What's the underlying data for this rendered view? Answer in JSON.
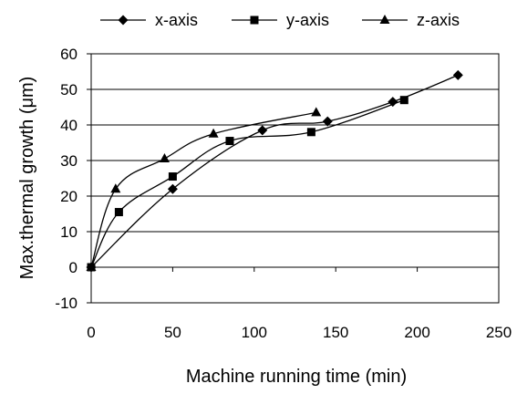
{
  "chart_data": {
    "type": "line",
    "xlabel": "Machine running time (min)",
    "ylabel": "Max.thermal growth (μm)",
    "xlim": [
      0,
      250
    ],
    "ylim": [
      -10,
      60
    ],
    "xticks": [
      0,
      50,
      100,
      150,
      200,
      250
    ],
    "yticks": [
      -10,
      0,
      10,
      20,
      30,
      40,
      50,
      60
    ],
    "grid": "horizontal",
    "legend_position": "top",
    "series": [
      {
        "name": "x-axis",
        "marker": "diamond",
        "color": "#000000",
        "x": [
          0,
          50,
          105,
          145,
          185,
          225
        ],
        "y": [
          0,
          22,
          38.5,
          41,
          46.5,
          54
        ]
      },
      {
        "name": "y-axis",
        "marker": "square",
        "color": "#000000",
        "x": [
          0,
          17,
          50,
          85,
          135,
          192
        ],
        "y": [
          0,
          15.5,
          25.5,
          35.5,
          38,
          47
        ]
      },
      {
        "name": "z-axis",
        "marker": "triangle",
        "color": "#000000",
        "x": [
          0,
          15,
          45,
          75,
          138
        ],
        "y": [
          0,
          22,
          30.5,
          37.5,
          43.5
        ]
      }
    ]
  }
}
